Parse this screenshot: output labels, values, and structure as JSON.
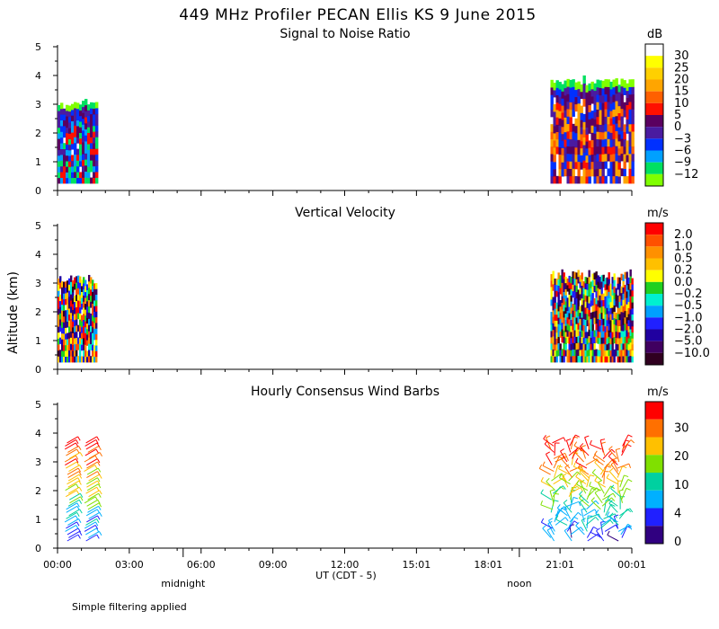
{
  "title": "449 MHz Profiler PECAN Ellis KS  9 June 2015",
  "y_axis_label": "Altitude (km)",
  "x_axis_label": "UT  (CDT - 5)",
  "time_ticks": [
    "00:00",
    "03:00",
    "06:00",
    "09:00",
    "12:00",
    "15:01",
    "18:01",
    "21:01",
    "00:01"
  ],
  "local_labels": [
    {
      "text": "midnight",
      "at_hours": 5.25
    },
    {
      "text": "noon",
      "at_hours": 19.3
    }
  ],
  "footnote": "Simple filtering applied",
  "chart_data": [
    {
      "type": "heatmap",
      "title": "Signal to Noise Ratio",
      "ylabel": "Altitude (km)",
      "xlabel": "UT  (CDT - 5)",
      "ylim": [
        0,
        5
      ],
      "xlim_hours": [
        0,
        24
      ],
      "y_ticks": [
        "0",
        "1",
        "2",
        "3",
        "4",
        "5"
      ],
      "colorbar": {
        "unit": "dB",
        "levels": [
          "30",
          "25",
          "20",
          "15",
          "10",
          "5",
          "0",
          "−3",
          "−6",
          "−9",
          "−12"
        ],
        "colors": [
          "#ffffff",
          "#ffff00",
          "#ffd000",
          "#ffa500",
          "#ff6000",
          "#ff1000",
          "#5a0060",
          "#4a1ba0",
          "#0030ff",
          "#00a0ff",
          "#00e060",
          "#80ff00"
        ]
      },
      "data_blocks": [
        {
          "t_start": 0.0,
          "t_end": 1.6,
          "alt_bottom": 0.25,
          "alt_top": 3.2
        },
        {
          "t_start": 20.6,
          "t_end": 24.0,
          "alt_bottom": 0.25,
          "alt_top": 4.0
        }
      ]
    },
    {
      "type": "heatmap",
      "title": "Vertical Velocity",
      "ylabel": "Altitude (km)",
      "xlabel": "UT  (CDT - 5)",
      "ylim": [
        0,
        5
      ],
      "xlim_hours": [
        0,
        24
      ],
      "y_ticks": [
        "0",
        "1",
        "2",
        "3",
        "4",
        "5"
      ],
      "colorbar": {
        "unit": "m/s",
        "levels": [
          "2.0",
          "1.0",
          "0.5",
          "0.2",
          "0.0",
          "−0.2",
          "−0.5",
          "−1.0",
          "−2.0",
          "−5.0",
          "−10.0"
        ],
        "colors": [
          "#ff0000",
          "#ff5000",
          "#ff9000",
          "#ffc000",
          "#ffff00",
          "#20d020",
          "#00f0d0",
          "#00a0ff",
          "#2020ff",
          "#2000a0",
          "#400060",
          "#300020"
        ]
      },
      "data_blocks": [
        {
          "t_start": 0.0,
          "t_end": 1.6,
          "alt_bottom": 0.25,
          "alt_top": 3.3
        },
        {
          "t_start": 20.6,
          "t_end": 24.0,
          "alt_bottom": 0.25,
          "alt_top": 3.5
        }
      ]
    },
    {
      "type": "scatter",
      "title": "Hourly Consensus Wind Barbs",
      "ylabel": "Altitude (km)",
      "xlabel": "UT  (CDT - 5)",
      "ylim": [
        0,
        5
      ],
      "xlim_hours": [
        0,
        24
      ],
      "y_ticks": [
        "0",
        "1",
        "2",
        "3",
        "4",
        "5"
      ],
      "colorbar": {
        "unit": "m/s",
        "levels": [
          "30",
          "20",
          "10",
          "4",
          "0"
        ],
        "colors": [
          "#ff0000",
          "#ff7000",
          "#ffc000",
          "#80e000",
          "#00d0a0",
          "#00b0ff",
          "#2020ff",
          "#300080"
        ]
      },
      "barb_columns_hours": [
        0.4,
        1.2,
        20.7,
        21.4,
        22.1,
        22.8,
        23.5
      ],
      "alt_top": 3.7
    }
  ]
}
